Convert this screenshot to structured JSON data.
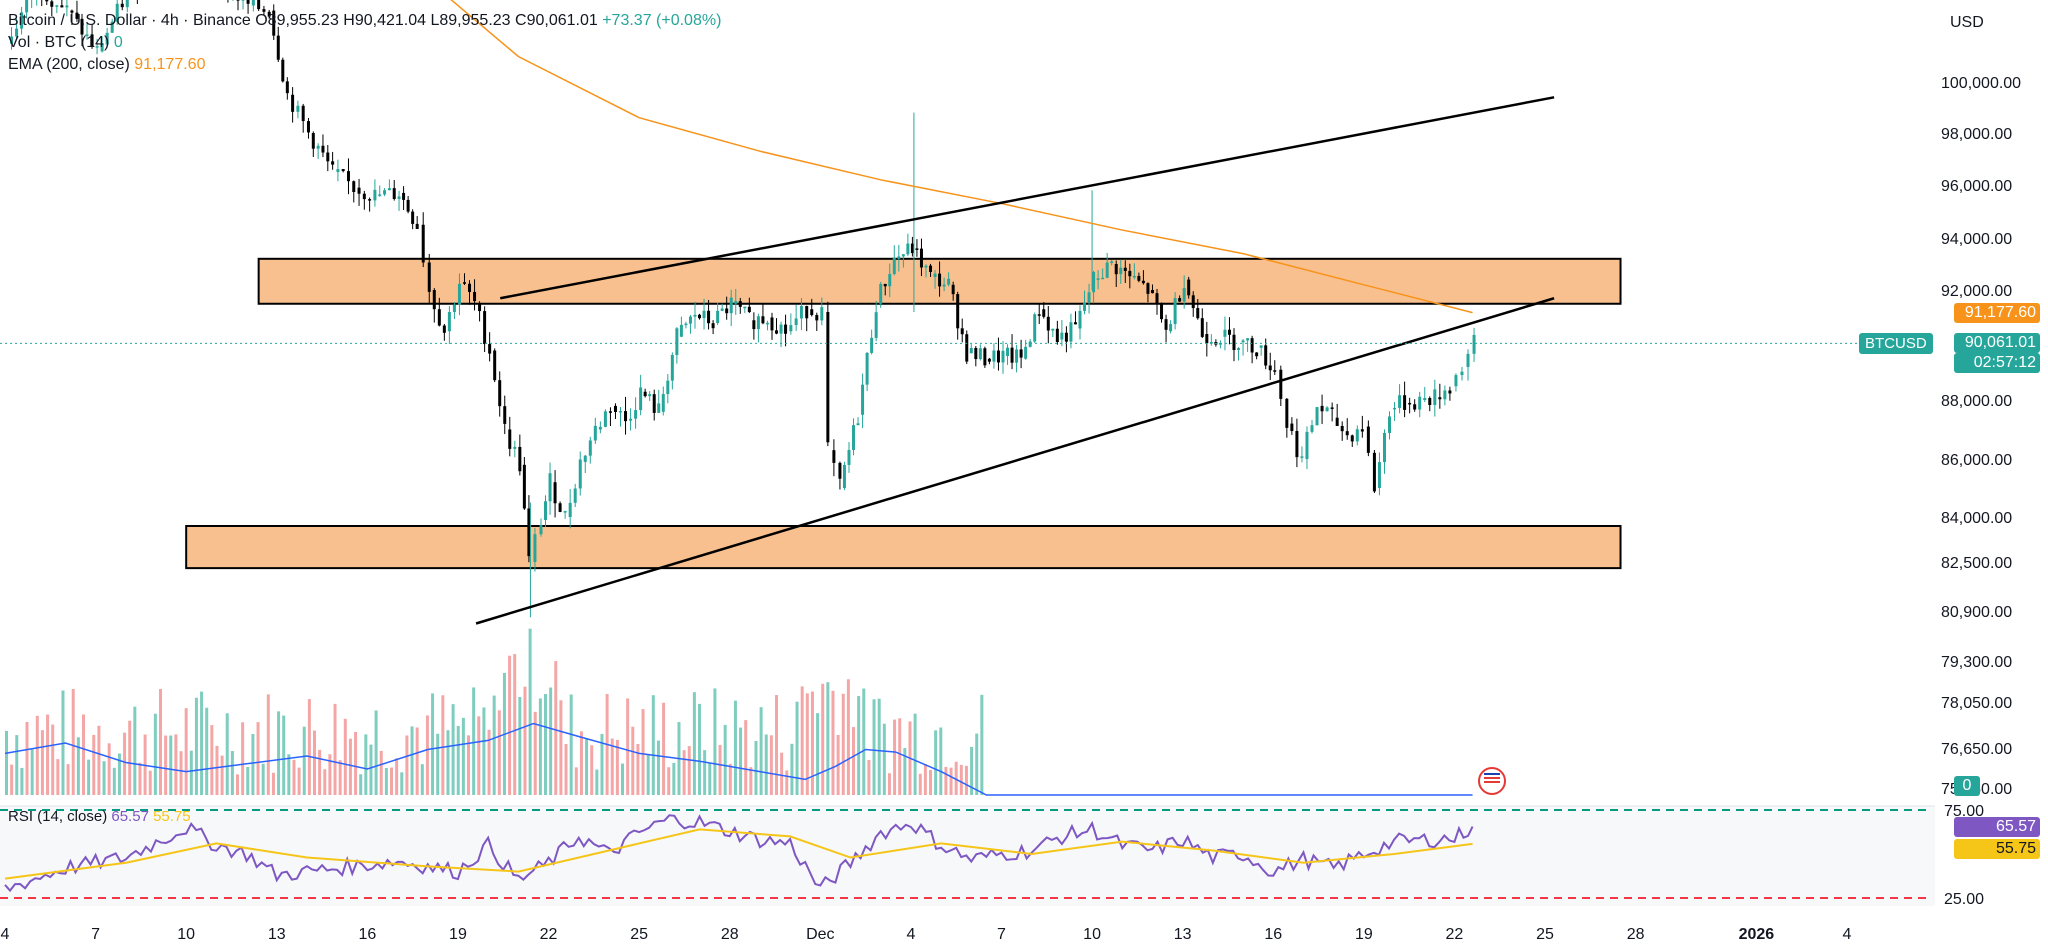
{
  "header": {
    "usd_label": "USD",
    "symbol_badge": "BTCUSD"
  },
  "legend": {
    "main": "Bitcoin / U.S. Dollar · 4h · Binance",
    "open": "O89,955.23",
    "high": "H90,421.04",
    "low": "L89,955.23",
    "close": "C90,061.01",
    "change": "+73.37 (+0.08%)",
    "vol_label": "Vol · BTC (14)",
    "vol_value": "0",
    "ema_label": "EMA (200, close)",
    "ema_value": "91,177.60",
    "rsi_label": "RSI (14, close)",
    "rsi_value": "65.57",
    "rsi_ma_value": "55.75"
  },
  "price_tags": {
    "ema": "91,177.60",
    "last": "90,061.01",
    "countdown": "02:57:12",
    "vol": "0",
    "rsi": "65.57",
    "rsi_ma": "55.75"
  },
  "colors": {
    "up": "#26a69a",
    "down": "#000000",
    "ema": "#f7931a",
    "zone_fill": "#f9c08f",
    "rsi": "#7e57c2",
    "rsi_ma": "#f5c518",
    "vol_up": "#7fcdbf",
    "vol_down": "#f4a6a6",
    "vol_ma": "#2962ff",
    "rsi_upper": "#089981",
    "rsi_lower": "#f23645"
  },
  "chart_data": {
    "type": "candlestick",
    "price_axis_ticks": [
      100000,
      98000,
      96000,
      94000,
      92000,
      88000,
      86000,
      84000,
      82500,
      80900,
      79300,
      78050,
      76650,
      75350
    ],
    "price_axis_labels": [
      "100,000.00",
      "98,000.00",
      "96,000.00",
      "94,000.00",
      "92,000.00",
      "88,000.00",
      "86,000.00",
      "84,000.00",
      "82,500.00",
      "80,900.00",
      "79,300.00",
      "78,050.00",
      "76,650.00",
      "75,350.00"
    ],
    "time_axis_labels": [
      {
        "label": "4",
        "day": 4
      },
      {
        "label": "7",
        "day": 7
      },
      {
        "label": "10",
        "day": 10
      },
      {
        "label": "13",
        "day": 13
      },
      {
        "label": "16",
        "day": 16
      },
      {
        "label": "19",
        "day": 19
      },
      {
        "label": "22",
        "day": 22
      },
      {
        "label": "25",
        "day": 25
      },
      {
        "label": "28",
        "day": 28
      },
      {
        "label": "Dec",
        "day": 31
      },
      {
        "label": "4",
        "day": 34
      },
      {
        "label": "7",
        "day": 37
      },
      {
        "label": "10",
        "day": 40
      },
      {
        "label": "13",
        "day": 43
      },
      {
        "label": "16",
        "day": 46
      },
      {
        "label": "19",
        "day": 49
      },
      {
        "label": "22",
        "day": 52
      },
      {
        "label": "25",
        "day": 55
      },
      {
        "label": "28",
        "day": 58
      },
      {
        "label": "2026",
        "day": 62
      },
      {
        "label": "4",
        "day": 65
      }
    ],
    "closes": [
      {
        "d": 4,
        "p": 101500
      },
      {
        "d": 5,
        "p": 103800
      },
      {
        "d": 6,
        "p": 102800
      },
      {
        "d": 7,
        "p": 101200
      },
      {
        "d": 8,
        "p": 103500
      },
      {
        "d": 9,
        "p": 104500
      },
      {
        "d": 10,
        "p": 105300
      },
      {
        "d": 11,
        "p": 104000
      },
      {
        "d": 12,
        "p": 103000
      },
      {
        "d": 12.7,
        "p": 102800
      },
      {
        "d": 13.3,
        "p": 99500
      },
      {
        "d": 14,
        "p": 98000
      },
      {
        "d": 14.8,
        "p": 96500
      },
      {
        "d": 15.5,
        "p": 95900
      },
      {
        "d": 16.2,
        "p": 95600
      },
      {
        "d": 17,
        "p": 95700
      },
      {
        "d": 17.6,
        "p": 94500
      },
      {
        "d": 18,
        "p": 92000
      },
      {
        "d": 18.5,
        "p": 90500
      },
      {
        "d": 19,
        "p": 92300
      },
      {
        "d": 19.5,
        "p": 91500
      },
      {
        "d": 20,
        "p": 89800
      },
      {
        "d": 20.5,
        "p": 87000
      },
      {
        "d": 21,
        "p": 85800
      },
      {
        "d": 21.3,
        "p": 82500
      },
      {
        "d": 21.7,
        "p": 83900
      },
      {
        "d": 22,
        "p": 85200
      },
      {
        "d": 22.5,
        "p": 84000
      },
      {
        "d": 23,
        "p": 85900
      },
      {
        "d": 23.5,
        "p": 87000
      },
      {
        "d": 24,
        "p": 87800
      },
      {
        "d": 24.5,
        "p": 87300
      },
      {
        "d": 25,
        "p": 88300
      },
      {
        "d": 25.6,
        "p": 87600
      },
      {
        "d": 26.2,
        "p": 90300
      },
      {
        "d": 26.8,
        "p": 91100
      },
      {
        "d": 27.4,
        "p": 90800
      },
      {
        "d": 28,
        "p": 91500
      },
      {
        "d": 28.6,
        "p": 90900
      },
      {
        "d": 29.2,
        "p": 91000
      },
      {
        "d": 29.8,
        "p": 90500
      },
      {
        "d": 30.5,
        "p": 91300
      },
      {
        "d": 31,
        "p": 91200
      },
      {
        "d": 31.2,
        "p": 86300
      },
      {
        "d": 31.6,
        "p": 85000
      },
      {
        "d": 32.2,
        "p": 87500
      },
      {
        "d": 32.8,
        "p": 91500
      },
      {
        "d": 33.4,
        "p": 93200
      },
      {
        "d": 34,
        "p": 93600
      },
      {
        "d": 34.6,
        "p": 92500
      },
      {
        "d": 35.2,
        "p": 92200
      },
      {
        "d": 35.8,
        "p": 89700
      },
      {
        "d": 36.4,
        "p": 89500
      },
      {
        "d": 37,
        "p": 89600
      },
      {
        "d": 37.6,
        "p": 89500
      },
      {
        "d": 38.2,
        "p": 91300
      },
      {
        "d": 38.8,
        "p": 90200
      },
      {
        "d": 39.4,
        "p": 90600
      },
      {
        "d": 40,
        "p": 92400
      },
      {
        "d": 40.6,
        "p": 93000
      },
      {
        "d": 41.2,
        "p": 92500
      },
      {
        "d": 41.8,
        "p": 92000
      },
      {
        "d": 42.4,
        "p": 90500
      },
      {
        "d": 43,
        "p": 92400
      },
      {
        "d": 43.6,
        "p": 90400
      },
      {
        "d": 44.2,
        "p": 90300
      },
      {
        "d": 44.8,
        "p": 90100
      },
      {
        "d": 45.4,
        "p": 89900
      },
      {
        "d": 46,
        "p": 89100
      },
      {
        "d": 46.4,
        "p": 87200
      },
      {
        "d": 46.9,
        "p": 86000
      },
      {
        "d": 47.4,
        "p": 87800
      },
      {
        "d": 47.9,
        "p": 87400
      },
      {
        "d": 48.4,
        "p": 86800
      },
      {
        "d": 48.9,
        "p": 87100
      },
      {
        "d": 49.3,
        "p": 85000
      },
      {
        "d": 49.8,
        "p": 87700
      },
      {
        "d": 50.3,
        "p": 87900
      },
      {
        "d": 50.8,
        "p": 88000
      },
      {
        "d": 51.3,
        "p": 88100
      },
      {
        "d": 51.8,
        "p": 88500
      },
      {
        "d": 52.2,
        "p": 89200
      },
      {
        "d": 52.6,
        "p": 90061
      }
    ],
    "ema_200": [
      {
        "d": 18,
        "p": 104000
      },
      {
        "d": 21,
        "p": 101000
      },
      {
        "d": 25,
        "p": 98600
      },
      {
        "d": 29,
        "p": 97300
      },
      {
        "d": 33,
        "p": 96200
      },
      {
        "d": 37,
        "p": 95300
      },
      {
        "d": 41,
        "p": 94300
      },
      {
        "d": 45,
        "p": 93400
      },
      {
        "d": 49,
        "p": 92200
      },
      {
        "d": 52.6,
        "p": 91177.6
      }
    ],
    "zones": [
      {
        "name": "resistance",
        "from_day": 12.4,
        "to_day": 57.5,
        "low": 91500,
        "high": 93200
      },
      {
        "name": "support",
        "from_day": 10,
        "to_day": 57.5,
        "low": 82300,
        "high": 83700
      }
    ],
    "trend_lines": [
      {
        "name": "upper-channel",
        "from": {
          "d": 20.4,
          "p": 91700
        },
        "to": {
          "d": 55.3,
          "p": 99400
        }
      },
      {
        "name": "lower-channel",
        "from": {
          "d": 19.6,
          "p": 80500
        },
        "to": {
          "d": 55.3,
          "p": 91700
        }
      }
    ],
    "current_price": 90061.01,
    "rsi": {
      "upper": 75,
      "lower": 25,
      "labels": [
        "75.00",
        "25.00"
      ],
      "values": [
        {
          "d": 4,
          "v": 30
        },
        {
          "d": 6,
          "v": 42
        },
        {
          "d": 8,
          "v": 48
        },
        {
          "d": 10,
          "v": 65
        },
        {
          "d": 11,
          "v": 55
        },
        {
          "d": 12,
          "v": 50
        },
        {
          "d": 13,
          "v": 38
        },
        {
          "d": 15,
          "v": 42
        },
        {
          "d": 17,
          "v": 46
        },
        {
          "d": 19,
          "v": 40
        },
        {
          "d": 20,
          "v": 55
        },
        {
          "d": 21,
          "v": 35
        },
        {
          "d": 22,
          "v": 45
        },
        {
          "d": 23,
          "v": 60
        },
        {
          "d": 24,
          "v": 50
        },
        {
          "d": 25,
          "v": 62
        },
        {
          "d": 26,
          "v": 70
        },
        {
          "d": 27,
          "v": 68
        },
        {
          "d": 28,
          "v": 63
        },
        {
          "d": 29,
          "v": 58
        },
        {
          "d": 30,
          "v": 56
        },
        {
          "d": 31,
          "v": 30
        },
        {
          "d": 32,
          "v": 45
        },
        {
          "d": 33,
          "v": 62
        },
        {
          "d": 34,
          "v": 68
        },
        {
          "d": 35,
          "v": 55
        },
        {
          "d": 36,
          "v": 47
        },
        {
          "d": 37,
          "v": 50
        },
        {
          "d": 38,
          "v": 52
        },
        {
          "d": 39,
          "v": 60
        },
        {
          "d": 40,
          "v": 64
        },
        {
          "d": 41,
          "v": 55
        },
        {
          "d": 42,
          "v": 52
        },
        {
          "d": 43,
          "v": 58
        },
        {
          "d": 44,
          "v": 48
        },
        {
          "d": 45,
          "v": 50
        },
        {
          "d": 46,
          "v": 40
        },
        {
          "d": 47,
          "v": 47
        },
        {
          "d": 48,
          "v": 42
        },
        {
          "d": 49,
          "v": 50
        },
        {
          "d": 50,
          "v": 57
        },
        {
          "d": 51,
          "v": 58
        },
        {
          "d": 52,
          "v": 59
        },
        {
          "d": 52.6,
          "v": 65.57
        }
      ],
      "ma": [
        {
          "d": 4,
          "v": 36
        },
        {
          "d": 8,
          "v": 45
        },
        {
          "d": 11,
          "v": 56
        },
        {
          "d": 14,
          "v": 48
        },
        {
          "d": 18,
          "v": 43
        },
        {
          "d": 21,
          "v": 40
        },
        {
          "d": 24,
          "v": 52
        },
        {
          "d": 27,
          "v": 64
        },
        {
          "d": 30,
          "v": 60
        },
        {
          "d": 32,
          "v": 48
        },
        {
          "d": 35,
          "v": 56
        },
        {
          "d": 38,
          "v": 50
        },
        {
          "d": 41,
          "v": 57
        },
        {
          "d": 44,
          "v": 52
        },
        {
          "d": 47,
          "v": 45
        },
        {
          "d": 50,
          "v": 50
        },
        {
          "d": 52.6,
          "v": 55.75
        }
      ]
    },
    "volume": {
      "ma": [
        {
          "d": 4,
          "v": 32
        },
        {
          "d": 6,
          "v": 40
        },
        {
          "d": 8,
          "v": 25
        },
        {
          "d": 10,
          "v": 18
        },
        {
          "d": 12,
          "v": 24
        },
        {
          "d": 14,
          "v": 30
        },
        {
          "d": 16,
          "v": 20
        },
        {
          "d": 18,
          "v": 35
        },
        {
          "d": 20,
          "v": 42
        },
        {
          "d": 21.5,
          "v": 55
        },
        {
          "d": 23,
          "v": 45
        },
        {
          "d": 25,
          "v": 32
        },
        {
          "d": 27,
          "v": 26
        },
        {
          "d": 29,
          "v": 18
        },
        {
          "d": 30.5,
          "v": 12
        },
        {
          "d": 31.5,
          "v": 22
        },
        {
          "d": 32.5,
          "v": 35
        },
        {
          "d": 33.5,
          "v": 33
        },
        {
          "d": 35,
          "v": 18
        },
        {
          "d": 36.5,
          "v": 0
        },
        {
          "d": 52.6,
          "v": 0
        }
      ]
    }
  }
}
